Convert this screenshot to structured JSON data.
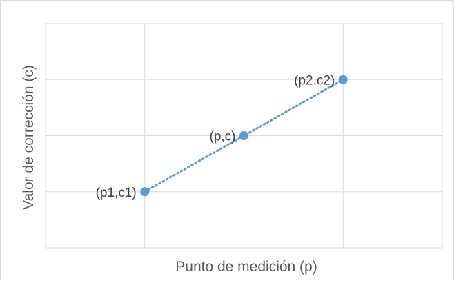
{
  "chart_data": {
    "type": "scatter",
    "xlabel": "Punto de medición (p)",
    "ylabel": "Valor de corrección (c)",
    "xlim": [
      0,
      4
    ],
    "ylim": [
      0,
      4
    ],
    "grid": true,
    "line_style": "dotted",
    "color": "#5B9BD5",
    "points": [
      {
        "x": 1,
        "y": 1,
        "label": "(p1,c1)"
      },
      {
        "x": 2,
        "y": 2,
        "label": "(p,c)"
      },
      {
        "x": 3,
        "y": 3,
        "label": "(p2,c2)"
      }
    ]
  }
}
